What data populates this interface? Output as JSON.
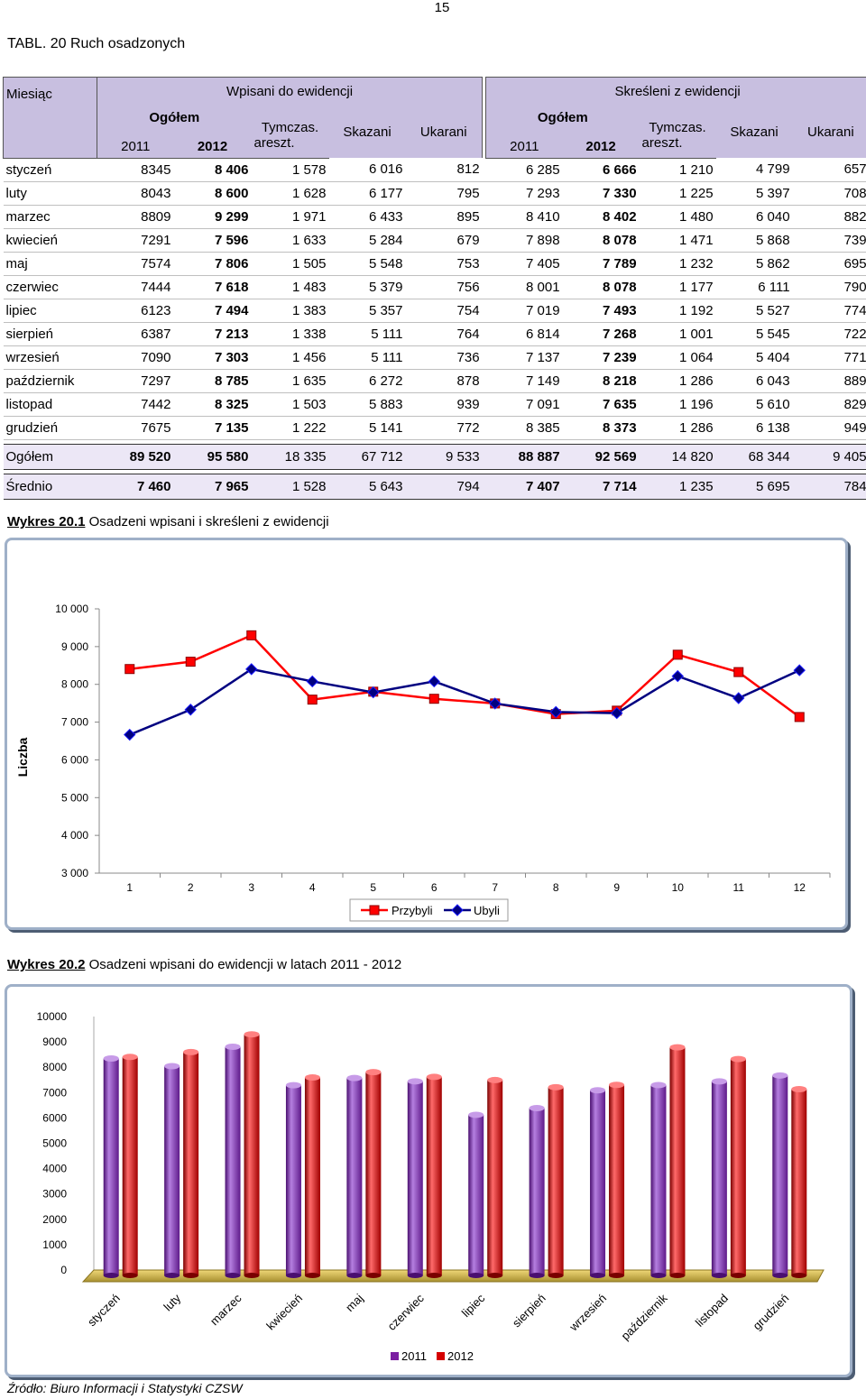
{
  "page_number": "15",
  "table": {
    "title": "TABL. 20  Ruch osadzonych",
    "header": {
      "month_col": "Miesiąc",
      "group_in": "Wpisani do ewidencji",
      "group_out": "Skreśleni z ewidencji",
      "total": "Ogółem",
      "temp_top": "Tymczas.",
      "temp_bottom": "areszt.",
      "sentenced": "Skazani",
      "punished": "Ukarani",
      "year1": "2011",
      "year2": "2012"
    },
    "rows": [
      {
        "month": "styczeń",
        "c": [
          "8345",
          "8 406",
          "1 578",
          "6 016",
          "812",
          "6 285",
          "6 666",
          "1 210",
          "4 799",
          "657"
        ]
      },
      {
        "month": "luty",
        "c": [
          "8043",
          "8 600",
          "1 628",
          "6 177",
          "795",
          "7 293",
          "7 330",
          "1 225",
          "5 397",
          "708"
        ]
      },
      {
        "month": "marzec",
        "c": [
          "8809",
          "9 299",
          "1 971",
          "6 433",
          "895",
          "8 410",
          "8 402",
          "1 480",
          "6 040",
          "882"
        ]
      },
      {
        "month": "kwiecień",
        "c": [
          "7291",
          "7 596",
          "1 633",
          "5 284",
          "679",
          "7 898",
          "8 078",
          "1 471",
          "5 868",
          "739"
        ]
      },
      {
        "month": "maj",
        "c": [
          "7574",
          "7 806",
          "1 505",
          "5 548",
          "753",
          "7 405",
          "7 789",
          "1 232",
          "5 862",
          "695"
        ]
      },
      {
        "month": "czerwiec",
        "c": [
          "7444",
          "7 618",
          "1 483",
          "5 379",
          "756",
          "8 001",
          "8 078",
          "1 177",
          "6 111",
          "790"
        ]
      },
      {
        "month": "lipiec",
        "c": [
          "6123",
          "7 494",
          "1 383",
          "5 357",
          "754",
          "7 019",
          "7 493",
          "1 192",
          "5 527",
          "774"
        ]
      },
      {
        "month": "sierpień",
        "c": [
          "6387",
          "7 213",
          "1 338",
          "5 111",
          "764",
          "6 814",
          "7 268",
          "1 001",
          "5 545",
          "722"
        ]
      },
      {
        "month": "wrzesień",
        "c": [
          "7090",
          "7 303",
          "1 456",
          "5 111",
          "736",
          "7 137",
          "7 239",
          "1 064",
          "5 404",
          "771"
        ]
      },
      {
        "month": "październik",
        "c": [
          "7297",
          "8 785",
          "1 635",
          "6 272",
          "878",
          "7 149",
          "8 218",
          "1 286",
          "6 043",
          "889"
        ]
      },
      {
        "month": "listopad",
        "c": [
          "7442",
          "8 325",
          "1 503",
          "5 883",
          "939",
          "7 091",
          "7 635",
          "1 196",
          "5 610",
          "829"
        ]
      },
      {
        "month": "grudzień",
        "c": [
          "7675",
          "7 135",
          "1 222",
          "5 141",
          "772",
          "8 385",
          "8 373",
          "1 286",
          "6 138",
          "949"
        ]
      }
    ],
    "total_row": {
      "month": "Ogółem",
      "c": [
        "89 520",
        "95 580",
        "18 335",
        "67 712",
        "9 533",
        "88 887",
        "92 569",
        "14 820",
        "68 344",
        "9 405"
      ]
    },
    "avg_row": {
      "month": "Średnio",
      "c": [
        "7 460",
        "7 965",
        "1 528",
        "5 643",
        "794",
        "7 407",
        "7 714",
        "1 235",
        "5 695",
        "784"
      ]
    }
  },
  "wykres1": {
    "label": "Wykres 20.1",
    "caption": "Osadzeni wpisani i skreśleni z ewidencji"
  },
  "wykres2": {
    "label": "Wykres 20.2",
    "caption": "Osadzeni wpisani do ewidencji w latach 2011 - 2012"
  },
  "chart_data": [
    {
      "type": "line",
      "x": [
        1,
        2,
        3,
        4,
        5,
        6,
        7,
        8,
        9,
        10,
        11,
        12
      ],
      "ylabel": "Liczba",
      "ylim": [
        3000,
        10000
      ],
      "yticks": [
        3000,
        4000,
        5000,
        6000,
        7000,
        8000,
        9000,
        10000
      ],
      "ytick_labels": [
        "3 000",
        "4 000",
        "5 000",
        "6 000",
        "7 000",
        "8 000",
        "9 000",
        "10 000"
      ],
      "grid": false,
      "legend": "bottom",
      "series": [
        {
          "name": "Przybyli",
          "color": "#ff0000",
          "marker": "square",
          "values": [
            8406,
            8600,
            9299,
            7596,
            7806,
            7618,
            7494,
            7213,
            7303,
            8785,
            8325,
            7135
          ]
        },
        {
          "name": "Ubyli",
          "color": "#000080",
          "marker": "diamond",
          "values": [
            6666,
            7330,
            8402,
            8078,
            7789,
            8078,
            7493,
            7268,
            7239,
            8218,
            7635,
            8373
          ]
        }
      ]
    },
    {
      "type": "bar",
      "style": "3d-cylinder",
      "categories": [
        "styczeń",
        "luty",
        "marzec",
        "kwiecień",
        "maj",
        "czerwiec",
        "lipiec",
        "sierpień",
        "wrzesień",
        "październik",
        "listopad",
        "grudzień"
      ],
      "ylim": [
        0,
        10000
      ],
      "yticks": [
        0,
        1000,
        2000,
        3000,
        4000,
        5000,
        6000,
        7000,
        8000,
        9000,
        10000
      ],
      "grid": false,
      "legend": "bottom",
      "series": [
        {
          "name": "2011",
          "color": "#7b1fa2",
          "values": [
            8345,
            8043,
            8809,
            7291,
            7574,
            7444,
            6123,
            6387,
            7090,
            7297,
            7442,
            7675
          ]
        },
        {
          "name": "2012",
          "color": "#d50000",
          "values": [
            8406,
            8600,
            9299,
            7596,
            7806,
            7618,
            7494,
            7213,
            7303,
            8785,
            8325,
            7135
          ]
        }
      ]
    }
  ]
}
